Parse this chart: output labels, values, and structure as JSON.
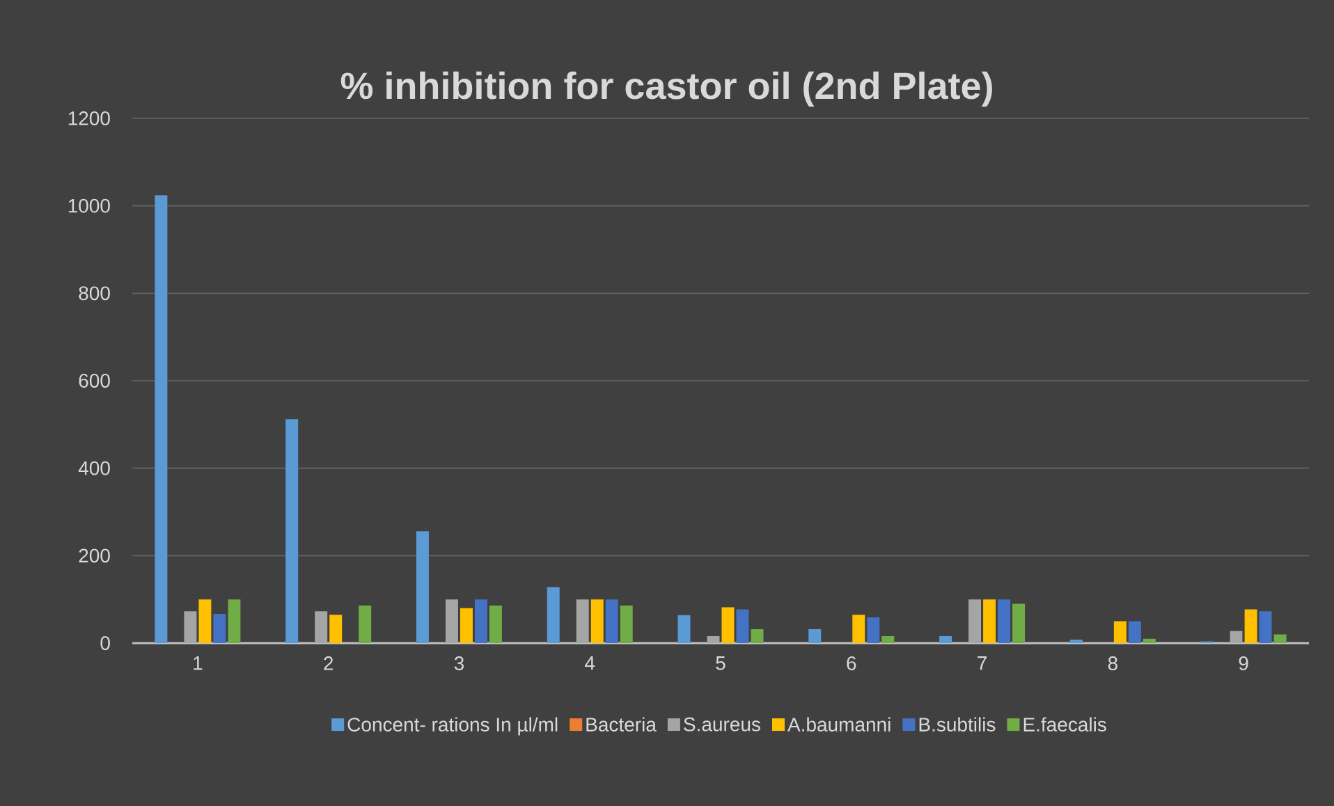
{
  "chart_data": {
    "type": "bar",
    "title": "% inhibition for castor oil (2nd Plate)",
    "categories": [
      "1",
      "2",
      "3",
      "4",
      "5",
      "6",
      "7",
      "8",
      "9"
    ],
    "series": [
      {
        "name": "Concent- rations In µl/ml",
        "color": "#5b9bd5",
        "values": [
          1024,
          512,
          256,
          128,
          64,
          32,
          16,
          8,
          4
        ]
      },
      {
        "name": "Bacteria",
        "color": "#ed7d31",
        "values": [
          0,
          0,
          0,
          0,
          0,
          0,
          0,
          0,
          0
        ]
      },
      {
        "name": "S.aureus",
        "color": "#a5a5a5",
        "values": [
          73,
          73,
          100,
          100,
          16,
          0,
          100,
          0,
          28
        ]
      },
      {
        "name": "A.baumanni",
        "color": "#ffc000",
        "values": [
          100,
          65,
          80,
          100,
          82,
          65,
          100,
          50,
          77
        ]
      },
      {
        "name": "B.subtilis",
        "color": "#4472c4",
        "values": [
          67,
          0,
          100,
          100,
          77,
          59,
          100,
          50,
          73
        ]
      },
      {
        "name": "E.faecalis",
        "color": "#70ad47",
        "values": [
          100,
          86,
          86,
          86,
          32,
          16,
          90,
          10,
          20
        ]
      }
    ],
    "ylim": [
      0,
      1200
    ],
    "yticks": [
      0,
      200,
      400,
      600,
      800,
      1000,
      1200
    ],
    "grid": "y",
    "legend": "bottom"
  }
}
